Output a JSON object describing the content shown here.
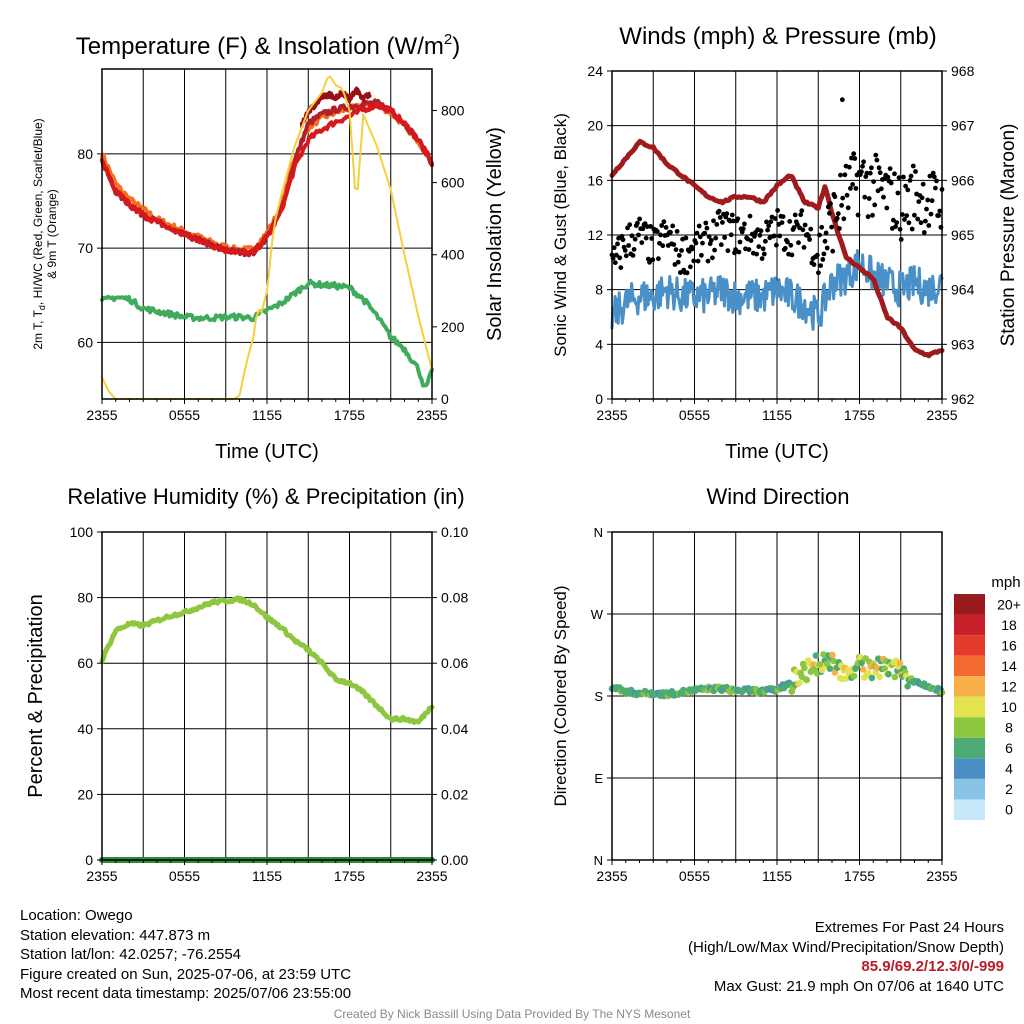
{
  "footer": {
    "location": "Location: Owego",
    "elevation": "Station elevation: 447.873 m",
    "latlon": "Station lat/lon: 42.0257; -76.2554",
    "created": "Figure created on Sun, 2025-07-06, at 23:59 UTC",
    "recent": "Most recent data timestamp: 2025/07/06 23:55:00",
    "extremes_title": "Extremes For Past 24 Hours",
    "extremes_sub": "(High/Low/Max Wind/Precipitation/Snow Depth)",
    "extremes_values": "85.9/69.2/12.3/0/-999",
    "max_gust": "Max Gust: 21.9 mph On 07/06 at 1640 UTC"
  },
  "credit": "Created By Nick Bassill Using Data Provided By The NYS Mesonet",
  "chart_data": [
    {
      "id": "temperature",
      "type": "line",
      "title": "Temperature (F) & Insolation (W/m",
      "title_sup": "2",
      "title_end": ")",
      "xlabel": "Time (UTC)",
      "ylabel_line1": "2m T, T",
      "ylabel_sub": "d",
      "ylabel_line1_end": ", HI/WC (Red, Green, Scarlet/Blue)",
      "ylabel_line2": "& 9m T (Orange)",
      "y2label": "Solar Insolation (Yellow)",
      "xticks": [
        "2355",
        "0555",
        "1155",
        "1755",
        "2355"
      ],
      "xlim": [
        0,
        24
      ],
      "ylim": [
        54,
        89
      ],
      "yticks": [
        60,
        70,
        80
      ],
      "y2lim": [
        0,
        915
      ],
      "y2ticks": [
        0,
        200,
        400,
        600,
        800
      ],
      "series": [
        {
          "color": "#f36f21",
          "axis": "left",
          "x": [
            0,
            1,
            2,
            3,
            4,
            5,
            6,
            7,
            8,
            9,
            10,
            11,
            12,
            13,
            14,
            15,
            16,
            17,
            18,
            19,
            20,
            21,
            22,
            23,
            24
          ],
          "values": [
            80.0,
            76.8,
            75.2,
            74.1,
            73.1,
            72.4,
            71.8,
            71.2,
            70.6,
            70.1,
            69.8,
            69.9,
            71.6,
            74.2,
            79.5,
            82.8,
            83.8,
            84.4,
            84.8,
            85.1,
            85.2,
            84.4,
            83.0,
            81.4,
            79.2
          ]
        },
        {
          "color": "#b3202a",
          "axis": "left",
          "x": [
            0,
            1,
            2,
            3,
            4,
            5,
            6,
            7,
            8,
            9,
            10,
            11,
            12,
            13,
            14,
            15,
            16,
            17,
            18,
            19,
            20,
            21,
            22,
            23,
            24
          ],
          "values": [
            79.2,
            76.0,
            74.6,
            73.5,
            72.8,
            72.0,
            71.4,
            70.9,
            70.3,
            69.8,
            69.6,
            69.5,
            71.2,
            73.8,
            79.2,
            83.2,
            84.2,
            84.7,
            85.0,
            85.3,
            85.4,
            84.6,
            83.2,
            81.5,
            79.0
          ]
        },
        {
          "color": "#d7191c",
          "axis": "left",
          "x": [
            0,
            1,
            2,
            3,
            4,
            5,
            6,
            7,
            8,
            9,
            10,
            11,
            12,
            13,
            14,
            15,
            16,
            17,
            18,
            19,
            20,
            21,
            22,
            23,
            24
          ],
          "values": [
            79.2,
            76.0,
            74.6,
            73.5,
            72.8,
            72.0,
            71.4,
            70.9,
            70.3,
            69.8,
            69.6,
            69.5,
            71.2,
            73.8,
            78.5,
            81.5,
            82.6,
            83.4,
            84.0,
            84.7,
            85.2,
            84.6,
            83.2,
            81.5,
            79.0
          ]
        },
        {
          "color": "#990f14",
          "axis": "left",
          "x": [
            14.5,
            15,
            15.5,
            16,
            16.5,
            17,
            17.5,
            18,
            18.5,
            19,
            19.5
          ],
          "values": [
            83.0,
            84.5,
            85.2,
            86.0,
            86.3,
            86.0,
            86.5,
            85.8,
            86.8,
            85.9,
            86.4
          ]
        },
        {
          "color": "#41ab5d",
          "axis": "left",
          "x": [
            0,
            1,
            2,
            3,
            4,
            5,
            6,
            7,
            8,
            9,
            10,
            11,
            12,
            13,
            14,
            15,
            16,
            17,
            18,
            19,
            20,
            21,
            22,
            23,
            23.5,
            24
          ],
          "values": [
            64.4,
            64.8,
            64.6,
            63.6,
            63.3,
            63.0,
            62.7,
            62.6,
            62.6,
            62.7,
            62.7,
            62.6,
            63.4,
            64.1,
            65.2,
            66.3,
            66.1,
            66.0,
            65.8,
            64.6,
            62.8,
            60.6,
            59.3,
            57.2,
            55.0,
            56.9
          ]
        },
        {
          "color": "#f4d03f",
          "axis": "right",
          "x": [
            0,
            0.5,
            1,
            2,
            4,
            6,
            8,
            9,
            9.6,
            10,
            10.5,
            11,
            11.3,
            11.6,
            12,
            12.5,
            13,
            14,
            15,
            16,
            16.5,
            17,
            17.5,
            18,
            18.5,
            19,
            20,
            21,
            22,
            23,
            24
          ],
          "values": [
            60,
            20,
            0,
            0,
            0,
            0,
            0,
            0,
            0,
            10,
            100,
            170,
            250,
            240,
            300,
            480,
            560,
            700,
            800,
            850,
            900,
            870,
            860,
            800,
            530,
            790,
            700,
            580,
            400,
            230,
            80
          ]
        }
      ]
    },
    {
      "id": "winds",
      "type": "scatter",
      "title": "Winds (mph) & Pressure (mb)",
      "xlabel": "Time (UTC)",
      "ylabel": "Sonic Wind & Gust (Blue, Black)",
      "y2label": "Station Pressure (Maroon)",
      "xticks": [
        "2355",
        "0555",
        "1155",
        "1755",
        "2355"
      ],
      "xlim": [
        0,
        24
      ],
      "ylim": [
        0,
        24
      ],
      "yticks": [
        0,
        4,
        8,
        12,
        16,
        20,
        24
      ],
      "y2lim": [
        962,
        968
      ],
      "y2ticks": [
        962,
        963,
        964,
        965,
        966,
        967,
        968
      ],
      "wind_color": "#4a90c8",
      "gust_color": "#000000",
      "pressure_color": "#a01c1c",
      "wind": {
        "x": [
          0,
          1,
          2,
          3,
          4,
          5,
          6,
          7,
          8,
          9,
          10,
          11,
          12,
          13,
          14,
          15,
          16,
          17,
          18,
          19,
          20,
          21,
          22,
          23,
          24
        ],
        "values": [
          6.0,
          7.0,
          7.5,
          7.5,
          8.0,
          7.5,
          7.5,
          7.5,
          8.0,
          7.5,
          7.5,
          7.5,
          8.0,
          7.5,
          7.0,
          6.0,
          8.5,
          9.0,
          10.0,
          9.0,
          8.5,
          8.0,
          8.5,
          8.0,
          8.5
        ]
      },
      "gust": {
        "x": [
          0,
          1,
          2,
          3,
          4,
          5,
          6,
          7,
          8,
          9,
          10,
          11,
          12,
          13,
          14,
          15,
          16,
          17,
          18,
          19,
          20,
          21,
          22,
          23,
          24
        ],
        "values": [
          9.5,
          11.5,
          12.0,
          11.0,
          12.0,
          10.5,
          11.0,
          11.5,
          12.5,
          12.0,
          12.0,
          11.5,
          12.5,
          12.0,
          12.5,
          10.5,
          13.0,
          15.0,
          16.0,
          15.5,
          15.0,
          14.0,
          15.0,
          14.5,
          14.0
        ]
      },
      "max_gust_point": {
        "x": 16.75,
        "y": 21.9
      },
      "pressure": {
        "x": [
          0,
          1,
          2,
          3,
          4,
          5,
          6,
          7,
          8,
          9,
          10,
          11,
          12,
          13,
          14,
          15,
          15.5,
          16,
          17,
          18,
          19,
          20,
          21,
          22,
          23,
          24
        ],
        "values": [
          966.1,
          966.4,
          966.7,
          966.6,
          966.3,
          966.1,
          965.9,
          965.7,
          965.6,
          965.7,
          965.7,
          965.6,
          965.9,
          966.1,
          965.6,
          965.5,
          965.9,
          965.4,
          964.6,
          964.4,
          964.2,
          963.5,
          963.3,
          962.9,
          962.8,
          962.9
        ]
      }
    },
    {
      "id": "rh",
      "type": "line",
      "title": "Relative Humidity (%) & Precipitation (in)",
      "xlabel": "",
      "ylabel": "Percent & Precipitation",
      "xticks": [
        "2355",
        "0555",
        "1155",
        "1755",
        "2355"
      ],
      "xlim": [
        0,
        24
      ],
      "ylim": [
        0,
        100
      ],
      "yticks": [
        0,
        20,
        40,
        60,
        80,
        100
      ],
      "y2lim": [
        0,
        0.1
      ],
      "y2ticks": [
        "0.00",
        "0.02",
        "0.04",
        "0.06",
        "0.08",
        "0.10"
      ],
      "series": [
        {
          "color": "#8dc63f",
          "x": [
            0,
            1,
            2,
            3,
            4,
            5,
            6,
            7,
            8,
            9,
            10,
            11,
            12,
            13,
            14,
            15,
            16,
            17,
            18,
            19,
            20,
            21,
            22,
            23,
            24
          ],
          "values": [
            61,
            70,
            72,
            71.5,
            73,
            74.5,
            75.5,
            77,
            78.5,
            79,
            79.5,
            78,
            74,
            71,
            67,
            64,
            60,
            55,
            54,
            51,
            47,
            43,
            43,
            42,
            47
          ]
        },
        {
          "color": "#2e8b3a",
          "x": [
            0,
            24
          ],
          "values": [
            0,
            0
          ]
        }
      ]
    },
    {
      "id": "direction",
      "type": "scatter",
      "title": "Wind Direction",
      "xlabel": "",
      "ylabel": "Direction (Colored By Speed)",
      "xticks": [
        "2355",
        "0555",
        "1155",
        "1755",
        "2355"
      ],
      "xlim": [
        0,
        24
      ],
      "yticks": [
        "N",
        "E",
        "S",
        "W",
        "N"
      ],
      "ylim": [
        0,
        360
      ],
      "colorbar_label": "mph",
      "colorbar": [
        {
          "label": "0",
          "color": "#c6e8f8"
        },
        {
          "label": "2",
          "color": "#89c4e6"
        },
        {
          "label": "4",
          "color": "#4a8fc4"
        },
        {
          "label": "6",
          "color": "#4daa73"
        },
        {
          "label": "8",
          "color": "#8dc63f"
        },
        {
          "label": "10",
          "color": "#e3e24f"
        },
        {
          "label": "12",
          "color": "#f7b04a"
        },
        {
          "label": "14",
          "color": "#f26a2f"
        },
        {
          "label": "16",
          "color": "#e43a2b"
        },
        {
          "label": "18",
          "color": "#c7202a"
        },
        {
          "label": "20+",
          "color": "#981b1e"
        }
      ],
      "x": [
        0,
        1,
        2,
        3,
        4,
        5,
        6,
        7,
        8,
        9,
        10,
        11,
        12,
        13,
        14,
        15,
        16,
        17,
        18,
        19,
        20,
        21,
        22,
        23,
        24
      ],
      "values": [
        190,
        185,
        183,
        183,
        182,
        184,
        186,
        188,
        188,
        186,
        186,
        185,
        187,
        195,
        207,
        215,
        220,
        203,
        213,
        208,
        215,
        205,
        195,
        190,
        185
      ]
    }
  ]
}
